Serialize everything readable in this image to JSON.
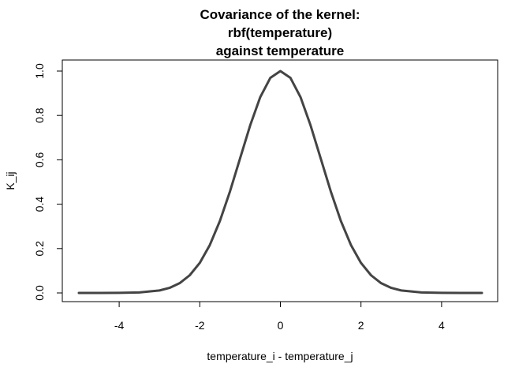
{
  "chart_data": {
    "type": "line",
    "title": [
      "Covariance of the kernel:",
      "rbf(temperature)",
      "against temperature"
    ],
    "xlabel": "temperature_i - temperature_j",
    "ylabel": "K_ij",
    "xlim": [
      -5,
      5
    ],
    "ylim": [
      0,
      1
    ],
    "x_ticks": [
      "-4",
      "-2",
      "0",
      "2",
      "4"
    ],
    "y_ticks": [
      "0.0",
      "0.2",
      "0.4",
      "0.6",
      "0.8",
      "1.0"
    ],
    "grid": false,
    "legend": "none",
    "line_color": "#444444",
    "series": [
      {
        "x": [
          -5,
          -4.5,
          -4,
          -3.5,
          -3,
          -2.75,
          -2.5,
          -2.25,
          -2,
          -1.75,
          -1.5,
          -1.25,
          -1,
          -0.75,
          -0.5,
          -0.25,
          0,
          0.25,
          0.5,
          0.75,
          1,
          1.25,
          1.5,
          1.75,
          2,
          2.25,
          2.5,
          2.75,
          3,
          3.5,
          4,
          4.5,
          5
        ],
        "y": [
          0.0,
          0.0,
          0.0003,
          0.0022,
          0.0111,
          0.0228,
          0.0439,
          0.0796,
          0.1353,
          0.2163,
          0.3247,
          0.4578,
          0.6065,
          0.7548,
          0.8825,
          0.9692,
          1.0,
          0.9692,
          0.8825,
          0.7548,
          0.6065,
          0.4578,
          0.3247,
          0.2163,
          0.1353,
          0.0796,
          0.0439,
          0.0228,
          0.0111,
          0.0022,
          0.0003,
          0.0,
          0.0
        ]
      }
    ]
  }
}
